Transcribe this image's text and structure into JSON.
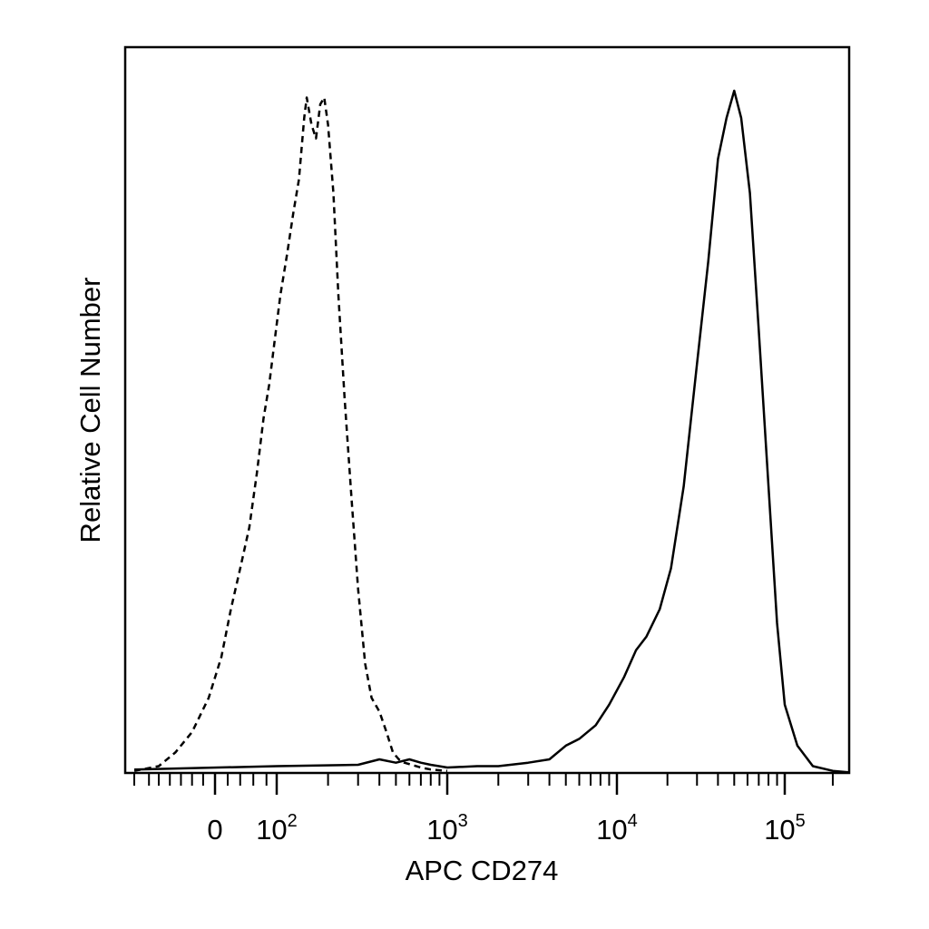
{
  "chart_data": {
    "type": "line",
    "title": "",
    "xlabel": "APC CD274",
    "ylabel": "Relative Cell Number",
    "x_scale": "logicle",
    "xlim": [
      -150,
      250000
    ],
    "ylim": [
      0,
      100
    ],
    "x_tick_labels": [
      {
        "value": 0,
        "base": "0",
        "exp": ""
      },
      {
        "value": 100,
        "base": "10",
        "exp": "2"
      },
      {
        "value": 1000,
        "base": "10",
        "exp": "3"
      },
      {
        "value": 10000,
        "base": "10",
        "exp": "4"
      },
      {
        "value": 100000,
        "base": "10",
        "exp": "5"
      }
    ],
    "grid": false,
    "legend": "none",
    "colors": {
      "line": "#000000",
      "background": "#ffffff"
    },
    "series": [
      {
        "style": "dashed",
        "x": [
          -150,
          -100,
          -70,
          -40,
          -10,
          10,
          25,
          40,
          55,
          65,
          75,
          85,
          95,
          105,
          115,
          125,
          135,
          145,
          150,
          160,
          170,
          180,
          190,
          200,
          215,
          230,
          250,
          275,
          300,
          330,
          360,
          400,
          440,
          480,
          520,
          560,
          620,
          700,
          800,
          1000
        ],
        "y": [
          0.3,
          1,
          3,
          6,
          11,
          17,
          24,
          30,
          36,
          44,
          52,
          57,
          63,
          70,
          76,
          82,
          87,
          96,
          99,
          95,
          93,
          98,
          99,
          95,
          85,
          70,
          55,
          40,
          27,
          16,
          11,
          9,
          6,
          3,
          2,
          1.5,
          1.2,
          0.8,
          0.5,
          0.3
        ]
      },
      {
        "style": "solid",
        "x": [
          -150,
          100,
          300,
          400,
          500,
          600,
          700,
          800,
          1000,
          1500,
          2000,
          3000,
          4000,
          5000,
          6000,
          7500,
          9000,
          11000,
          13000,
          15000,
          18000,
          21000,
          25000,
          30000,
          35000,
          40000,
          45000,
          50000,
          55000,
          62000,
          70000,
          80000,
          90000,
          100000,
          120000,
          150000,
          200000,
          250000
        ],
        "y": [
          0.5,
          1,
          1.2,
          2,
          1.5,
          2,
          1.5,
          1.2,
          0.8,
          1,
          1,
          1.5,
          2,
          4,
          5,
          7,
          10,
          14,
          18,
          20,
          24,
          30,
          42,
          60,
          75,
          90,
          96,
          100,
          96,
          85,
          65,
          42,
          22,
          10,
          4,
          1,
          0.3,
          0.1
        ]
      }
    ]
  }
}
